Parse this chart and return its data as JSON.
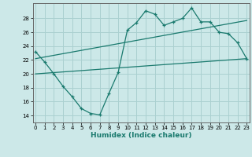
{
  "line1_x": [
    0,
    1,
    2,
    3,
    4,
    5,
    6,
    7,
    8,
    9,
    10,
    11,
    12,
    13,
    14,
    15,
    16,
    17,
    18,
    19,
    20,
    21,
    22,
    23
  ],
  "line1_y": [
    23.2,
    21.7,
    20.0,
    18.2,
    16.7,
    15.0,
    14.3,
    14.1,
    17.2,
    20.2,
    26.3,
    27.4,
    29.1,
    28.6,
    27.0,
    27.5,
    28.0,
    29.5,
    27.5,
    27.5,
    26.0,
    25.8,
    24.5,
    22.2
  ],
  "line2_x": [
    0,
    23
  ],
  "line2_y": [
    22.2,
    27.7
  ],
  "line3_x": [
    0,
    23
  ],
  "line3_y": [
    20.0,
    22.2
  ],
  "line_color": "#1a7a6e",
  "bg_color": "#cce8e8",
  "grid_color": "#aad0d0",
  "xlabel": "Humidex (Indice chaleur)",
  "yticks": [
    14,
    16,
    18,
    20,
    22,
    24,
    26,
    28
  ],
  "xticks": [
    0,
    1,
    2,
    3,
    4,
    5,
    6,
    7,
    8,
    9,
    10,
    11,
    12,
    13,
    14,
    15,
    16,
    17,
    18,
    19,
    20,
    21,
    22,
    23
  ],
  "xlim": [
    -0.3,
    23.3
  ],
  "ylim": [
    13.0,
    30.2
  ]
}
